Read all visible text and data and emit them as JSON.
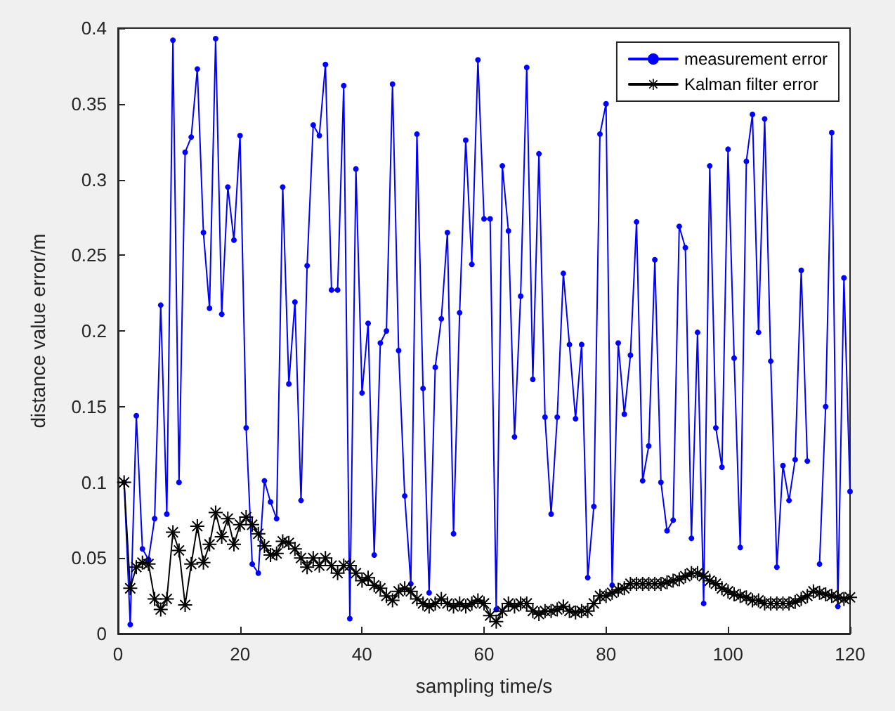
{
  "chart_data": {
    "type": "line",
    "xlabel": "sampling time/s",
    "ylabel": "distance value error/m",
    "x": [
      1,
      2,
      3,
      4,
      5,
      6,
      7,
      8,
      9,
      10,
      11,
      12,
      13,
      14,
      15,
      16,
      17,
      18,
      19,
      20,
      21,
      22,
      23,
      24,
      25,
      26,
      27,
      28,
      29,
      30,
      31,
      32,
      33,
      34,
      35,
      36,
      37,
      38,
      39,
      40,
      41,
      42,
      43,
      44,
      45,
      46,
      47,
      48,
      49,
      50,
      51,
      52,
      53,
      54,
      55,
      56,
      57,
      58,
      59,
      60,
      61,
      62,
      63,
      64,
      65,
      66,
      67,
      68,
      69,
      70,
      71,
      72,
      73,
      74,
      75,
      76,
      77,
      78,
      79,
      80,
      81,
      82,
      83,
      84,
      85,
      86,
      87,
      88,
      89,
      90,
      91,
      92,
      93,
      94,
      95,
      96,
      97,
      98,
      99,
      100,
      101,
      102,
      103,
      104,
      105,
      106,
      107,
      108,
      109,
      110,
      111,
      112,
      113,
      114,
      115,
      116,
      117,
      118,
      119,
      120
    ],
    "series": [
      {
        "name": "measurement error",
        "color": "#0000ff",
        "marker": "circle",
        "values": [
          0.1,
          0.006,
          0.144,
          0.056,
          0.049,
          0.076,
          0.217,
          0.079,
          0.392,
          0.1,
          0.318,
          0.328,
          0.373,
          0.265,
          0.215,
          0.393,
          0.211,
          0.295,
          0.26,
          0.329,
          0.136,
          0.046,
          0.04,
          0.101,
          0.087,
          0.076,
          0.295,
          0.165,
          0.219,
          0.088,
          0.243,
          0.336,
          0.329,
          0.376,
          0.227,
          0.227,
          0.362,
          0.01,
          0.307,
          0.159,
          0.205,
          0.052,
          0.192,
          0.2,
          0.363,
          0.187,
          0.091,
          0.033,
          0.33,
          0.162,
          0.027,
          0.176,
          0.208,
          0.265,
          0.066,
          0.212,
          0.326,
          0.244,
          0.379,
          0.274,
          0.274,
          0.016,
          0.309,
          0.266,
          0.13,
          0.223,
          0.374,
          0.168,
          0.317,
          0.143,
          0.079,
          0.143,
          0.238,
          0.191,
          0.142,
          0.191,
          0.037,
          0.084,
          0.33,
          0.35,
          0.032,
          0.192,
          0.145,
          0.184,
          0.272,
          0.101,
          0.124,
          0.247,
          0.1,
          0.068,
          0.075,
          0.269,
          0.255,
          0.063,
          0.199,
          0.02,
          0.309,
          0.136,
          0.11,
          0.32,
          0.182,
          0.057,
          0.312,
          0.343,
          0.199,
          0.34,
          0.18,
          0.044,
          0.111,
          0.088,
          0.115,
          0.24,
          0.114,
          null,
          0.046,
          0.15,
          0.331,
          0.018,
          0.235,
          0.094
        ]
      },
      {
        "name": "Kalman filter error",
        "color": "#000000",
        "marker": "star",
        "values": [
          0.1,
          0.03,
          0.044,
          0.047,
          0.046,
          0.023,
          0.016,
          0.023,
          0.067,
          0.055,
          0.019,
          0.046,
          0.071,
          0.047,
          0.059,
          0.08,
          0.064,
          0.076,
          0.059,
          0.072,
          0.077,
          0.072,
          0.066,
          0.058,
          0.052,
          0.053,
          0.061,
          0.06,
          0.056,
          0.05,
          0.044,
          0.05,
          0.045,
          0.05,
          0.045,
          0.04,
          0.045,
          0.045,
          0.04,
          0.035,
          0.037,
          0.032,
          0.03,
          0.025,
          0.022,
          0.028,
          0.03,
          0.028,
          0.023,
          0.02,
          0.018,
          0.02,
          0.023,
          0.02,
          0.018,
          0.02,
          0.018,
          0.02,
          0.022,
          0.02,
          0.012,
          0.008,
          0.015,
          0.02,
          0.018,
          0.02,
          0.02,
          0.015,
          0.013,
          0.015,
          0.015,
          0.016,
          0.018,
          0.015,
          0.014,
          0.015,
          0.015,
          0.02,
          0.025,
          0.025,
          0.027,
          0.029,
          0.03,
          0.033,
          0.033,
          0.033,
          0.033,
          0.033,
          0.033,
          0.034,
          0.035,
          0.036,
          0.038,
          0.04,
          0.04,
          0.038,
          0.035,
          0.033,
          0.03,
          0.028,
          0.026,
          0.025,
          0.024,
          0.022,
          0.022,
          0.02,
          0.02,
          0.02,
          0.02,
          0.02,
          0.021,
          0.023,
          0.025,
          0.028,
          0.027,
          0.026,
          0.025,
          0.024,
          0.023,
          0.024
        ]
      }
    ],
    "xlim": [
      0,
      120
    ],
    "xticks": [
      0,
      20,
      40,
      60,
      80,
      100,
      120
    ],
    "ylim": [
      0,
      0.4
    ],
    "yticks": [
      0,
      0.05,
      0.1,
      0.15,
      0.2,
      0.25,
      0.3,
      0.35,
      0.4
    ],
    "legend": "top right",
    "line_style": "solid"
  }
}
